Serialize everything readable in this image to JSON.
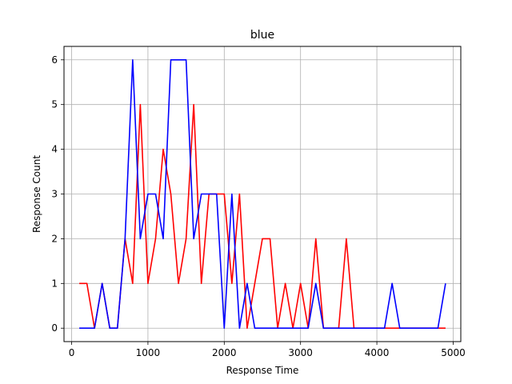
{
  "chart_data": {
    "type": "line",
    "title": "blue",
    "xlabel": "Response Time",
    "ylabel": "Response Count",
    "xlim": [
      -100,
      5100
    ],
    "ylim": [
      -0.3,
      6.3
    ],
    "xticks": [
      0,
      1000,
      2000,
      3000,
      4000,
      5000
    ],
    "yticks": [
      0,
      1,
      2,
      3,
      4,
      5,
      6
    ],
    "grid": true,
    "x": [
      100,
      200,
      300,
      400,
      500,
      600,
      700,
      800,
      900,
      1000,
      1100,
      1200,
      1300,
      1400,
      1500,
      1600,
      1700,
      1800,
      1900,
      2000,
      2100,
      2200,
      2300,
      2400,
      2500,
      2600,
      2700,
      2800,
      2900,
      3000,
      3100,
      3200,
      3300,
      3400,
      3500,
      3600,
      3700,
      3800,
      3900,
      4000,
      4100,
      4200,
      4300,
      4400,
      4500,
      4600,
      4700,
      4800,
      4900
    ],
    "series": [
      {
        "color": "#ff0000",
        "values": [
          1,
          1,
          0,
          1,
          0,
          0,
          2,
          1,
          5,
          1,
          2,
          4,
          3,
          1,
          2,
          5,
          1,
          3,
          3,
          3,
          1,
          3,
          0,
          1,
          2,
          2,
          0,
          1,
          0,
          1,
          0,
          2,
          0,
          0,
          0,
          2,
          0,
          0,
          0,
          0,
          0,
          0,
          0,
          0,
          0,
          0,
          0,
          0,
          0
        ]
      },
      {
        "color": "#0000ff",
        "values": [
          0,
          0,
          0,
          1,
          0,
          0,
          2,
          6,
          2,
          3,
          3,
          2,
          6,
          6,
          6,
          2,
          3,
          3,
          3,
          0,
          3,
          0,
          1,
          0,
          0,
          0,
          0,
          0,
          0,
          0,
          0,
          1,
          0,
          0,
          0,
          0,
          0,
          0,
          0,
          0,
          0,
          1,
          0,
          0,
          0,
          0,
          0,
          0,
          1
        ]
      }
    ]
  }
}
